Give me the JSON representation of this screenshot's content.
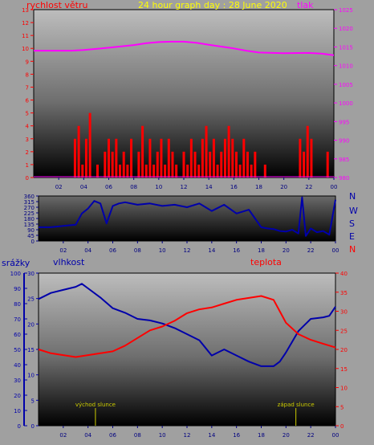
{
  "header": {
    "title": "24 hour graph day : 28 June 2020",
    "left_label": "rychlost větru",
    "right_label": "tlak"
  },
  "compass": [
    "N",
    "W",
    "S",
    "E",
    "N"
  ],
  "lower_labels": {
    "left": "srážky",
    "humidity": "vlhkost",
    "temperature": "teplota",
    "sunrise": "východ slunce",
    "sunset": "západ slunce"
  },
  "colors": {
    "title": "#ffff00",
    "wind": "#ff0000",
    "pressure": "#ff00ff",
    "direction": "#0000aa",
    "humidity": "#0000aa",
    "temperature": "#ff0000",
    "rain_axis": "#0000aa",
    "sun_marker": "#cccc00"
  },
  "chart_data": [
    {
      "type": "line",
      "id": "wind_pressure",
      "x_ticks": [
        "02",
        "04",
        "06",
        "08",
        "10",
        "12",
        "14",
        "16",
        "18",
        "20",
        "22",
        "00"
      ],
      "xlim": [
        0,
        24
      ],
      "y_left": {
        "ticks": [
          0,
          1,
          2,
          3,
          4,
          5,
          6,
          7,
          8,
          9,
          10,
          11,
          12,
          13
        ],
        "ylim": [
          0,
          13
        ]
      },
      "y_right": {
        "ticks": [
          980,
          985,
          990,
          995,
          1000,
          1005,
          1010,
          1015,
          1020,
          1025
        ],
        "ylim": [
          980,
          1025
        ]
      },
      "series": [
        {
          "name": "tlak",
          "axis": "right",
          "x": [
            0,
            2,
            3,
            4,
            6,
            8,
            9,
            10,
            11,
            12,
            13,
            14,
            16,
            17,
            18,
            20,
            22,
            23,
            24
          ],
          "y": [
            1014,
            1014,
            1014,
            1014.2,
            1014.8,
            1015.5,
            1016,
            1016.3,
            1016.4,
            1016.4,
            1016.1,
            1015.6,
            1014.6,
            1014,
            1013.5,
            1013.3,
            1013.4,
            1013.2,
            1012.8
          ]
        },
        {
          "name": "rychlost větru",
          "axis": "left",
          "x": [
            0,
            3.0,
            3.3,
            3.6,
            3.9,
            4.2,
            4.5,
            4.8,
            5.1,
            5.4,
            5.7,
            6.0,
            6.3,
            6.6,
            6.9,
            7.2,
            7.5,
            7.8,
            8.1,
            8.4,
            8.7,
            9.0,
            9.3,
            9.6,
            9.9,
            10.2,
            10.5,
            10.8,
            11.1,
            11.4,
            11.7,
            12.0,
            12.3,
            12.6,
            12.9,
            13.2,
            13.5,
            13.8,
            14.1,
            14.4,
            14.7,
            15.0,
            15.3,
            15.6,
            15.9,
            16.2,
            16.5,
            16.8,
            17.1,
            17.4,
            17.7,
            18.0,
            18.5,
            19.0,
            20.0,
            21.0,
            21.3,
            21.6,
            21.9,
            22.2,
            22.5,
            23.0,
            23.5,
            24
          ],
          "y": [
            0,
            0,
            3,
            4,
            1,
            3,
            5,
            0,
            1,
            0,
            2,
            3,
            2,
            3,
            1,
            2,
            1,
            3,
            0,
            2,
            4,
            1,
            3,
            1,
            2,
            3,
            1,
            3,
            2,
            1,
            0,
            2,
            1,
            3,
            2,
            1,
            3,
            4,
            2,
            3,
            1,
            2,
            3,
            4,
            3,
            2,
            1,
            3,
            2,
            1,
            2,
            0,
            1,
            0,
            0,
            0,
            3,
            2,
            4,
            3,
            0,
            0,
            2,
            0
          ]
        }
      ]
    },
    {
      "type": "line",
      "id": "wind_direction",
      "x_ticks": [
        "02",
        "04",
        "06",
        "08",
        "10",
        "12",
        "14",
        "16",
        "18",
        "20",
        "22",
        "00"
      ],
      "xlim": [
        0,
        24
      ],
      "ylim": [
        0,
        360
      ],
      "y_ticks": [
        0,
        45,
        90,
        135,
        180,
        225,
        270,
        315,
        360
      ],
      "series": [
        {
          "name": "direction",
          "x": [
            0,
            1,
            2,
            3,
            3.5,
            4,
            4.5,
            5,
            5.5,
            6,
            6.5,
            7,
            8,
            9,
            10,
            11,
            12,
            13,
            14,
            15,
            16,
            17,
            17.5,
            18,
            18.5,
            19,
            19.5,
            20,
            20.5,
            21,
            21.3,
            21.6,
            22,
            22.5,
            23,
            23.5,
            24
          ],
          "y": [
            110,
            110,
            120,
            130,
            220,
            260,
            320,
            300,
            140,
            280,
            300,
            310,
            290,
            300,
            280,
            290,
            270,
            300,
            240,
            290,
            220,
            250,
            180,
            110,
            100,
            95,
            80,
            75,
            90,
            60,
            350,
            40,
            100,
            70,
            80,
            50,
            330
          ]
        }
      ]
    },
    {
      "type": "line",
      "id": "humidity_temperature",
      "x_ticks": [
        "02",
        "04",
        "06",
        "08",
        "10",
        "12",
        "14",
        "16",
        "18",
        "20",
        "22",
        "00"
      ],
      "xlim": [
        0,
        24
      ],
      "y_left_outer": {
        "ticks": [
          0,
          10,
          20,
          30,
          40,
          50,
          60,
          70,
          80,
          90,
          100
        ],
        "ylim": [
          0,
          100
        ]
      },
      "y_left_inner": {
        "ticks": [
          0,
          5,
          10,
          15,
          20,
          25,
          30
        ],
        "ylim": [
          0,
          30
        ]
      },
      "y_right": {
        "ticks": [
          0,
          5,
          10,
          15,
          20,
          25,
          30,
          35,
          40
        ],
        "ylim": [
          0,
          40
        ]
      },
      "annotations": [
        {
          "label": "východ slunce",
          "x": 4.6
        },
        {
          "label": "západ slunce",
          "x": 20.8
        }
      ],
      "series": [
        {
          "name": "vlhkost",
          "axis": "left_outer",
          "x": [
            0,
            1,
            2,
            3,
            3.5,
            4,
            5,
            6,
            7,
            8,
            9,
            10,
            11,
            12,
            13,
            14,
            15,
            16,
            17,
            18,
            19,
            19.5,
            20,
            21,
            22,
            23,
            23.5,
            24
          ],
          "y": [
            83,
            87,
            89,
            91,
            93,
            90,
            84,
            77,
            74,
            70,
            69,
            67,
            64,
            60,
            56,
            46,
            50,
            46,
            42,
            39,
            39,
            42,
            48,
            62,
            70,
            71,
            72,
            78
          ]
        },
        {
          "name": "teplota",
          "axis": "right",
          "x": [
            0,
            1,
            2,
            3,
            4,
            5,
            6,
            7,
            8,
            9,
            10,
            11,
            12,
            13,
            14,
            15,
            16,
            17,
            18,
            19,
            19.5,
            20,
            21,
            22,
            23,
            24
          ],
          "y": [
            20,
            19,
            18.5,
            18,
            18.5,
            19,
            19.5,
            21,
            23,
            25,
            26,
            27.5,
            29.5,
            30.5,
            31,
            32,
            33,
            33.5,
            34,
            33,
            30,
            27,
            24,
            22.5,
            21.5,
            20.5
          ]
        }
      ]
    }
  ]
}
